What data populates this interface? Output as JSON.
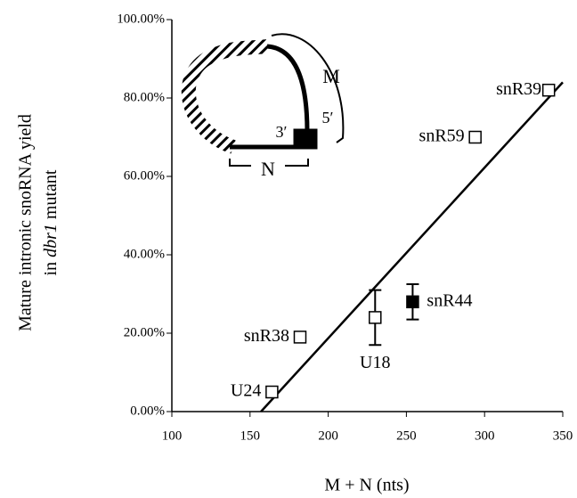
{
  "chart_data": {
    "type": "scatter",
    "x_label": "M + N (nts)",
    "y_label": {
      "line1": "Mature intronic snoRNA yield",
      "line2_start": "in",
      "line2_italic": "dbr1",
      "line2_end": "mutant"
    },
    "x": [
      164,
      182,
      230,
      254,
      294,
      341
    ],
    "values": [
      5,
      19,
      24,
      28,
      70,
      82
    ],
    "errors": [
      null,
      null,
      7,
      4.5,
      null,
      null
    ],
    "point_labels": [
      "U24",
      "snR38",
      "U18",
      "snR44",
      "snR59",
      "snR39"
    ],
    "filled": [
      false,
      false,
      false,
      true,
      false,
      false
    ],
    "color": "#000000",
    "trendline": {
      "x": [
        157,
        350
      ],
      "y": [
        0,
        84
      ]
    },
    "xlim": [
      100,
      350
    ],
    "xticks": [
      100,
      150,
      200,
      250,
      300,
      350
    ],
    "ylim": [
      0,
      100
    ],
    "yticks": [
      {
        "value": 0,
        "label": "0.00%"
      },
      {
        "value": 20,
        "label": "20.00%"
      },
      {
        "value": 40,
        "label": "40.00%"
      },
      {
        "value": 60,
        "label": "60.00%"
      },
      {
        "value": 80,
        "label": "80.00%"
      },
      {
        "value": 100,
        "label": "100.00%"
      }
    ],
    "inset": {
      "M": "M",
      "N": "N",
      "three_prime": "3′",
      "five_prime": "5′"
    }
  }
}
